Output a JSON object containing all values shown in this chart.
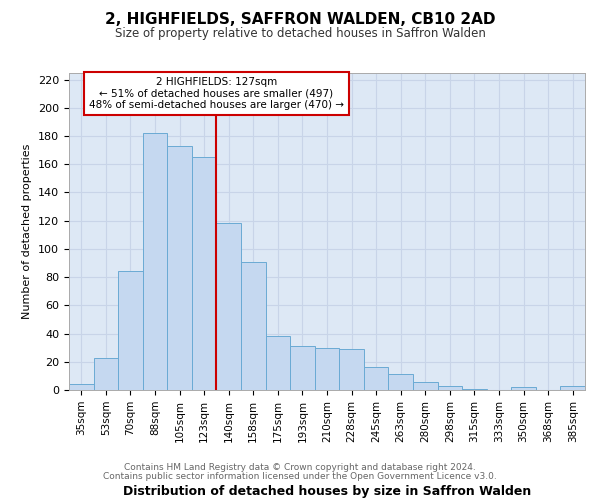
{
  "title": "2, HIGHFIELDS, SAFFRON WALDEN, CB10 2AD",
  "subtitle": "Size of property relative to detached houses in Saffron Walden",
  "xlabel": "Distribution of detached houses by size in Saffron Walden",
  "ylabel": "Number of detached properties",
  "categories": [
    "35sqm",
    "53sqm",
    "70sqm",
    "88sqm",
    "105sqm",
    "123sqm",
    "140sqm",
    "158sqm",
    "175sqm",
    "193sqm",
    "210sqm",
    "228sqm",
    "245sqm",
    "263sqm",
    "280sqm",
    "298sqm",
    "315sqm",
    "333sqm",
    "350sqm",
    "368sqm",
    "385sqm"
  ],
  "values": [
    4,
    23,
    84,
    182,
    173,
    165,
    118,
    91,
    38,
    31,
    30,
    29,
    16,
    11,
    6,
    3,
    1,
    0,
    2,
    0,
    3
  ],
  "bar_color": "#c5d8f0",
  "bar_edgecolor": "#6aaad4",
  "property_index": 5,
  "property_label": "2 HIGHFIELDS: 127sqm",
  "annotation_line1": "← 51% of detached houses are smaller (497)",
  "annotation_line2": "48% of semi-detached houses are larger (470) →",
  "box_color": "#cc0000",
  "ylim": [
    0,
    225
  ],
  "yticks": [
    0,
    20,
    40,
    60,
    80,
    100,
    120,
    140,
    160,
    180,
    200,
    220
  ],
  "grid_color": "#c8d4e8",
  "background_color": "#dde8f5",
  "footer_line1": "Contains HM Land Registry data © Crown copyright and database right 2024.",
  "footer_line2": "Contains public sector information licensed under the Open Government Licence v3.0."
}
